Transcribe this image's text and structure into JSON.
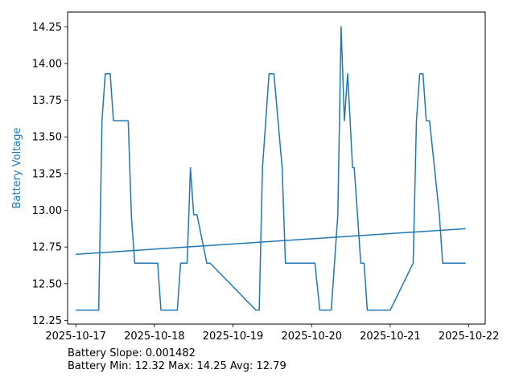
{
  "chart_data": {
    "type": "line",
    "title": "",
    "xlabel": "",
    "ylabel": "Battery Voltage",
    "ylabel_color": "#1f77b4",
    "series_color": "#1f77b4",
    "grid": false,
    "xlim": [
      "2025-10-16T21:30",
      "2025-10-22T05:00"
    ],
    "ylim": [
      12.225,
      14.35
    ],
    "x_ticks": [
      "2025-10-17",
      "2025-10-18",
      "2025-10-19",
      "2025-10-20",
      "2025-10-21",
      "2025-10-22"
    ],
    "y_ticks": [
      "12.25",
      "12.50",
      "12.75",
      "13.00",
      "13.25",
      "13.50",
      "13.75",
      "14.00",
      "14.25"
    ],
    "series": [
      {
        "x": [
          "2025-10-17T00:00",
          "2025-10-17T07:00",
          "2025-10-17T08:00",
          "2025-10-17T09:00",
          "2025-10-17T10:30",
          "2025-10-17T11:30",
          "2025-10-17T16:00",
          "2025-10-17T17:00",
          "2025-10-17T18:00",
          "2025-10-18T01:00",
          "2025-10-18T02:00",
          "2025-10-18T07:00",
          "2025-10-18T08:00",
          "2025-10-18T10:00",
          "2025-10-18T11:00",
          "2025-10-18T12:00",
          "2025-10-18T13:00",
          "2025-10-18T16:00",
          "2025-10-18T17:00",
          "2025-10-19T07:00",
          "2025-10-19T08:00",
          "2025-10-19T09:00",
          "2025-10-19T11:00",
          "2025-10-19T12:30",
          "2025-10-19T15:00",
          "2025-10-19T16:00",
          "2025-10-20T01:00",
          "2025-10-20T02:30",
          "2025-10-20T06:00",
          "2025-10-20T08:00",
          "2025-10-20T09:00",
          "2025-10-20T10:00",
          "2025-10-20T11:00",
          "2025-10-20T12:30",
          "2025-10-20T13:00",
          "2025-10-20T14:00",
          "2025-10-20T15:00",
          "2025-10-20T16:00",
          "2025-10-20T17:00",
          "2025-10-21T00:00",
          "2025-10-21T07:00",
          "2025-10-21T08:00",
          "2025-10-21T09:00",
          "2025-10-21T10:00",
          "2025-10-21T11:00",
          "2025-10-21T12:00",
          "2025-10-21T15:00",
          "2025-10-21T16:00",
          "2025-10-21T17:00",
          "2025-10-21T23:00"
        ],
        "y": [
          12.32,
          12.32,
          13.61,
          13.93,
          13.93,
          13.61,
          13.61,
          12.95,
          12.64,
          12.64,
          12.32,
          12.32,
          12.64,
          12.64,
          13.29,
          12.97,
          12.97,
          12.64,
          12.64,
          12.32,
          12.32,
          13.29,
          13.93,
          13.93,
          13.29,
          12.64,
          12.64,
          12.32,
          12.32,
          12.97,
          14.25,
          13.61,
          13.93,
          13.29,
          13.29,
          12.97,
          12.64,
          12.64,
          12.32,
          12.32,
          12.64,
          13.61,
          13.93,
          13.93,
          13.61,
          13.61,
          12.97,
          12.64,
          12.64,
          12.64
        ]
      },
      {
        "x": [
          "2025-10-17T00:00",
          "2025-10-21T23:00"
        ],
        "y": [
          12.7,
          12.875
        ]
      }
    ]
  },
  "annotations": {
    "slope_line": "Battery Slope: 0.001482",
    "stats_line": "Battery Min: 12.32 Max: 14.25 Avg: 12.79"
  }
}
